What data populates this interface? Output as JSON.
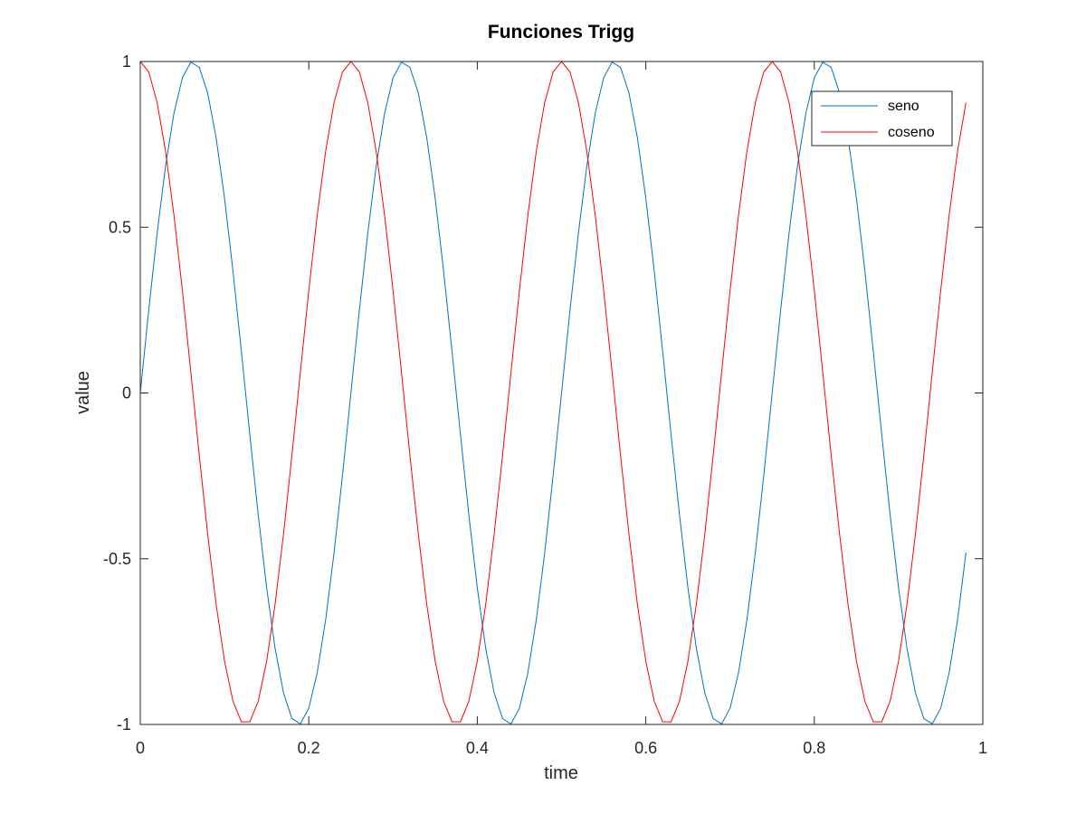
{
  "chart_data": {
    "type": "line",
    "title": "Funciones Trigg",
    "xlabel": "time",
    "ylabel": "value",
    "xlim": [
      0,
      1
    ],
    "ylim": [
      -1,
      1
    ],
    "xticks": [
      0,
      0.2,
      0.4,
      0.6,
      0.8,
      1
    ],
    "xtick_labels": [
      "0",
      "0.2",
      "0.4",
      "0.6",
      "0.8",
      "1"
    ],
    "yticks": [
      -1,
      -0.5,
      0,
      0.5,
      1
    ],
    "ytick_labels": [
      "-1",
      "-0.5",
      "0",
      "0.5",
      "1"
    ],
    "grid": false,
    "legend_position": "top-right",
    "frequency_hz": 4,
    "x_start": 0,
    "x_end": 0.98,
    "x_step": 0.01,
    "series": [
      {
        "name": "seno",
        "function": "sin(2*pi*4*t)",
        "color": "#0072bd"
      },
      {
        "name": "coseno",
        "function": "cos(2*pi*4*t)",
        "color": "#ff0000"
      }
    ]
  }
}
